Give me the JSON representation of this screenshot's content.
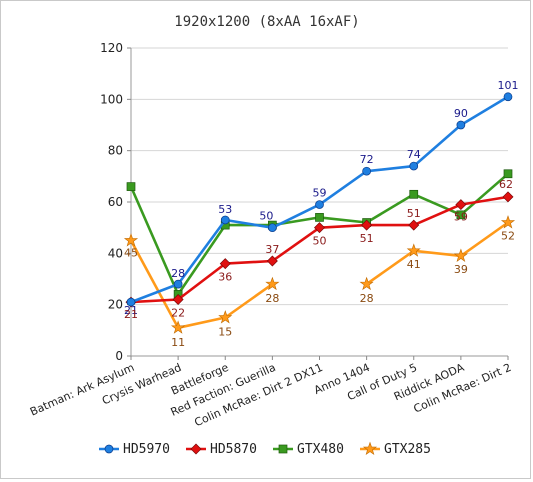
{
  "chart_data": {
    "type": "line",
    "title": "1920x1200 (8xAA 16xAF)",
    "xlabel": "",
    "ylabel": "",
    "ylim": [
      0,
      120
    ],
    "yticks": [
      0,
      20,
      40,
      60,
      80,
      100,
      120
    ],
    "grid": true,
    "legend_placement": "bottom",
    "categories": [
      "Batman: Ark Asylum",
      "Crysis Warhead",
      "Battleforge",
      "Red Faction: Guerilla",
      "Colin McRae: Dirt 2 DX11",
      "Anno 1404",
      "Call of Duty 5",
      "Riddick AODA",
      "Colin McRae: Dirt 2"
    ],
    "series": [
      {
        "name": "HD5970",
        "color": "#1f7fe0",
        "label_color": "#1a1a8a",
        "marker": "circle",
        "values": [
          21,
          28,
          53,
          50,
          59,
          72,
          74,
          90,
          101
        ],
        "labels": [
          "21",
          "28",
          "53",
          "50",
          "59",
          "72",
          "74",
          "90",
          "101"
        ]
      },
      {
        "name": "HD5870",
        "color": "#e01010",
        "label_color": "#8a1a1a",
        "marker": "diamond",
        "values": [
          21,
          22,
          36,
          37,
          50,
          51,
          51,
          59,
          62
        ],
        "labels": [
          "21",
          "22",
          "36",
          "37",
          "50",
          "51",
          "51",
          "59",
          "62"
        ]
      },
      {
        "name": "GTX480",
        "color": "#3a9a20",
        "label_color": "#2a6a10",
        "marker": "square",
        "values": [
          66,
          24,
          51,
          51,
          54,
          52,
          63,
          55,
          71
        ],
        "labels": [
          "",
          "",
          "",
          "",
          "",
          "",
          "",
          "",
          ""
        ]
      },
      {
        "name": "GTX285",
        "color": "#ff9a1a",
        "label_color": "#8a4a10",
        "marker": "star",
        "values": [
          45,
          11,
          15,
          28,
          null,
          28,
          41,
          39,
          52
        ],
        "labels": [
          "45",
          "11",
          "15",
          "28",
          "",
          "28",
          "41",
          "39",
          "52"
        ]
      }
    ]
  }
}
